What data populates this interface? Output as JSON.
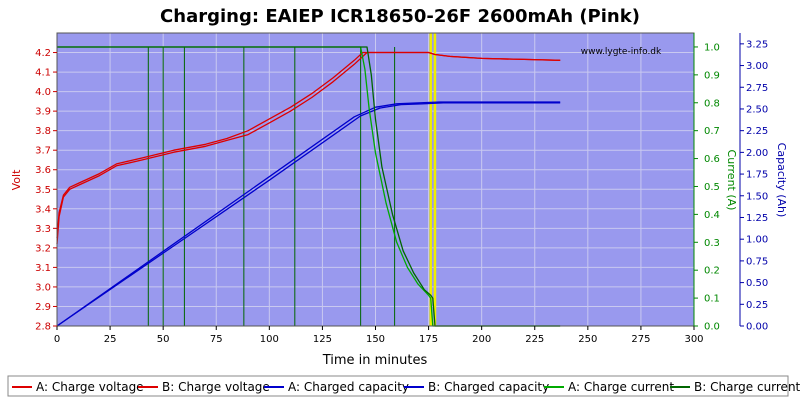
{
  "chart_data": {
    "type": "line",
    "title": "Charging: EAIEP ICR18650-26F 2600mAh (Pink)",
    "watermark": "www.lygte-info.dk",
    "xlabel": "Time in minutes",
    "ylabel_left": "Volt",
    "ylabel_right_current": "Current (A)",
    "ylabel_right_capacity": "Capacity (Ah)",
    "xlim": [
      0,
      300
    ],
    "ylim_volt": [
      2.8,
      4.3
    ],
    "ylim_current": [
      0,
      1.05
    ],
    "ylim_capacity": [
      0,
      3.375
    ],
    "x_ticks": [
      "0",
      "25",
      "50",
      "75",
      "100",
      "125",
      "150",
      "175",
      "200",
      "225",
      "250",
      "275",
      "300"
    ],
    "volt_ticks": [
      "2.8",
      "2.9",
      "3.0",
      "3.1",
      "3.2",
      "3.3",
      "3.4",
      "3.5",
      "3.6",
      "3.7",
      "3.8",
      "3.9",
      "4.0",
      "4.1",
      "4.2"
    ],
    "current_ticks": [
      "0.0",
      "0.1",
      "0.2",
      "0.3",
      "0.4",
      "0.5",
      "0.6",
      "0.7",
      "0.8",
      "0.9",
      "1.0"
    ],
    "capacity_ticks": [
      "0.00",
      "0.25",
      "0.50",
      "0.75",
      "1.00",
      "1.25",
      "1.50",
      "1.75",
      "2.00",
      "2.25",
      "2.50",
      "2.75",
      "3.00",
      "3.25"
    ],
    "grid": true,
    "legend_position": "bottom",
    "colors": {
      "plot_bg": "#9999ee",
      "grid": "#c9c9f0",
      "voltage": "#dd0000",
      "capacity": "#0000cc",
      "current_a": "#00aa00",
      "current_b": "#006600",
      "marker": "#eeee00",
      "left_axis": "#cc0000",
      "current_axis": "#008800",
      "capacity_axis": "#0000aa"
    },
    "series": [
      {
        "name": "A: Charge voltage",
        "axis": "volt",
        "color": "#dd0000",
        "x": [
          0,
          1,
          3,
          6,
          10,
          20,
          28,
          40,
          55,
          70,
          80,
          90,
          100,
          110,
          120,
          130,
          140,
          144,
          145,
          148,
          160,
          175,
          178,
          185,
          200,
          220,
          237
        ],
        "y": [
          3.25,
          3.38,
          3.47,
          3.51,
          3.53,
          3.58,
          3.63,
          3.66,
          3.7,
          3.73,
          3.76,
          3.8,
          3.86,
          3.92,
          3.99,
          4.07,
          4.16,
          4.2,
          4.2,
          4.2,
          4.2,
          4.2,
          4.19,
          4.18,
          4.17,
          4.165,
          4.16
        ]
      },
      {
        "name": "B: Charge voltage",
        "axis": "volt",
        "color": "#dd0000",
        "x": [
          0,
          1,
          3,
          6,
          10,
          20,
          28,
          40,
          55,
          70,
          80,
          90,
          100,
          110,
          120,
          130,
          140,
          146,
          147,
          150,
          160,
          175,
          178,
          185,
          200,
          220,
          237
        ],
        "y": [
          3.22,
          3.36,
          3.46,
          3.5,
          3.52,
          3.57,
          3.62,
          3.65,
          3.69,
          3.72,
          3.75,
          3.78,
          3.84,
          3.9,
          3.97,
          4.05,
          4.14,
          4.2,
          4.2,
          4.2,
          4.2,
          4.2,
          4.19,
          4.18,
          4.17,
          4.165,
          4.16
        ]
      },
      {
        "name": "A: Charged capacity",
        "axis": "capacity",
        "color": "#0000cc",
        "x": [
          0,
          50,
          100,
          140,
          150,
          160,
          170,
          180,
          200,
          237
        ],
        "y": [
          0,
          0.86,
          1.72,
          2.41,
          2.52,
          2.56,
          2.57,
          2.58,
          2.58,
          2.58
        ]
      },
      {
        "name": "B: Charged capacity",
        "axis": "capacity",
        "color": "#0000cc",
        "x": [
          0,
          50,
          100,
          143,
          152,
          162,
          172,
          182,
          200,
          237
        ],
        "y": [
          0,
          0.84,
          1.68,
          2.42,
          2.51,
          2.55,
          2.56,
          2.57,
          2.57,
          2.57
        ]
      },
      {
        "name": "A: Charge current",
        "axis": "current",
        "color": "#00aa00",
        "x": [
          0,
          143,
          145,
          147,
          150,
          155,
          160,
          165,
          170,
          175,
          176,
          177,
          178,
          200,
          237
        ],
        "y": [
          1.0,
          1.0,
          0.92,
          0.78,
          0.62,
          0.44,
          0.3,
          0.21,
          0.15,
          0.11,
          0.1,
          0.0,
          0.0,
          0.0,
          0.0
        ]
      },
      {
        "name": "B: Charge current",
        "axis": "current",
        "color": "#006600",
        "x": [
          0,
          146,
          148,
          150,
          153,
          158,
          163,
          168,
          173,
          176,
          177,
          178,
          200,
          237
        ],
        "y": [
          1.0,
          1.0,
          0.9,
          0.74,
          0.57,
          0.4,
          0.27,
          0.19,
          0.13,
          0.11,
          0.1,
          0.0,
          0.0,
          0.0
        ]
      }
    ],
    "current_spikes": [
      {
        "x": 43,
        "y": 0.0
      },
      {
        "x": 50,
        "y": 0.0
      },
      {
        "x": 60,
        "y": 0.0
      },
      {
        "x": 88,
        "y": 0.0
      },
      {
        "x": 112,
        "y": 0.0
      },
      {
        "x": 143,
        "y": 0.0
      },
      {
        "x": 159,
        "y": 0.0
      }
    ],
    "marker_lines": [
      176,
      178
    ],
    "legend": [
      {
        "label": "A: Charge voltage",
        "color": "#dd0000"
      },
      {
        "label": "B: Charge voltage",
        "color": "#dd0000"
      },
      {
        "label": "A: Charged capacity",
        "color": "#0000cc"
      },
      {
        "label": "B: Charged capacity",
        "color": "#0000cc"
      },
      {
        "label": "A: Charge current",
        "color": "#00aa00"
      },
      {
        "label": "B: Charge current",
        "color": "#006600"
      }
    ]
  }
}
